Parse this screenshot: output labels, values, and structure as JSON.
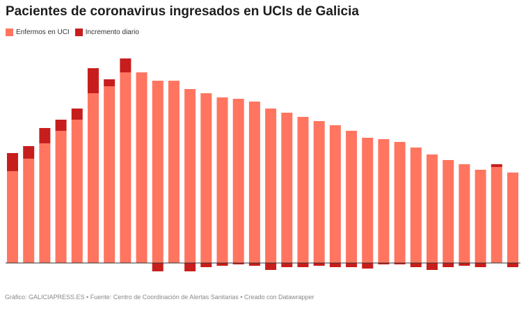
{
  "chart_data": {
    "type": "bar",
    "stacked": true,
    "title": "Pacientes de coronavirus ingresados en UCIs de Galicia",
    "legend_position": "top-left",
    "grid": false,
    "series": [
      {
        "name": "Enfermos en UCI",
        "color": "#ff7560",
        "values": [
          66,
          75,
          86,
          95,
          103,
          122,
          127,
          137,
          137,
          131,
          131,
          125,
          122,
          119,
          118,
          116,
          111,
          108,
          105,
          102,
          99,
          95,
          90,
          89,
          87,
          83,
          78,
          74,
          71,
          67,
          69,
          65
        ]
      },
      {
        "name": "Incremento diario",
        "color": "#c71e1d",
        "values": [
          13,
          9,
          11,
          8,
          8,
          18,
          5,
          10,
          0,
          -6,
          0,
          -6,
          -3,
          -2,
          -1,
          -2,
          -5,
          -3,
          -3,
          -2,
          -3,
          -3,
          -4,
          -1,
          -1,
          -3,
          -5,
          -3,
          -2,
          -3,
          2,
          -3
        ]
      }
    ],
    "ylim": [
      -10,
      140
    ]
  },
  "footer": "Gráfico: GALICIAPRESS.ES • Fuente: Centro de Coordinación de Alertas Sanitarias • Creado con Datawrapper"
}
